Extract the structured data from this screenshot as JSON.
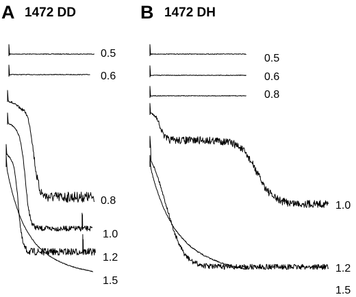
{
  "chart_data": [
    {
      "type": "line",
      "panel_letter": "A",
      "title": "1472 DD",
      "xlabel": "",
      "ylabel": "",
      "grid": false,
      "series": [
        {
          "label": "0.5",
          "shape": "flat"
        },
        {
          "label": "0.6",
          "shape": "flat"
        },
        {
          "label": "0.8",
          "shape": "sigmoid",
          "noise": 0.55
        },
        {
          "label": "1.0",
          "shape": "sigmoid",
          "noise": 0.25
        },
        {
          "label": "1.2",
          "shape": "sigmoid",
          "noise": 0.35
        },
        {
          "label": "1.5",
          "shape": "decay",
          "noise": 0.05
        }
      ]
    },
    {
      "type": "line",
      "panel_letter": "B",
      "title": "1472 DH",
      "xlabel": "",
      "ylabel": "",
      "grid": false,
      "series": [
        {
          "label": "0.5",
          "shape": "flat"
        },
        {
          "label": "0.6",
          "shape": "flat"
        },
        {
          "label": "0.8",
          "shape": "flat"
        },
        {
          "label": "1.0",
          "shape": "biphasic",
          "noise": 0.4
        },
        {
          "label": "1.2",
          "shape": "sigmoid",
          "noise": 0.25
        },
        {
          "label": "1.5",
          "shape": "decay",
          "noise": 0.08
        }
      ]
    }
  ]
}
